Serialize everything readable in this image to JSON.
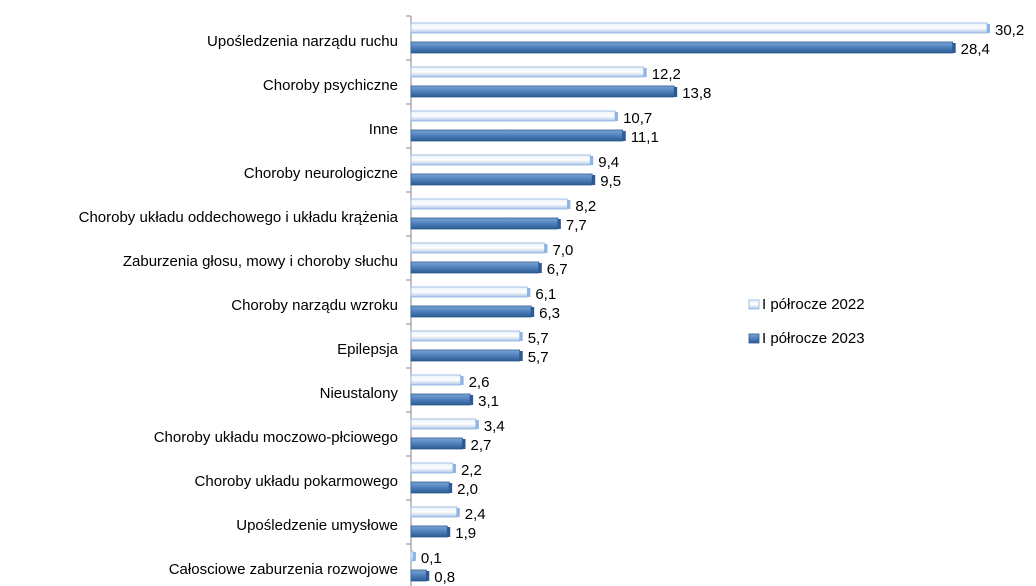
{
  "chart_data": {
    "type": "bar",
    "orientation": "horizontal",
    "categories": [
      "Upośledzenia narządu ruchu",
      "Choroby psychiczne",
      "Inne",
      "Choroby neurologiczne",
      "Choroby układu oddechowego i układu krążenia",
      "Zaburzenia głosu, mowy i choroby słuchu",
      "Choroby narządu wzroku",
      "Epilepsja",
      "Nieustalony",
      "Choroby układu moczowo-płciowego",
      "Choroby układu pokarmowego",
      "Upośledzenie umysłowe",
      "Całosciowe zaburzenia rozwojowe"
    ],
    "series": [
      {
        "name": "I półrocze 2022",
        "color": "#c6d9f1",
        "values": [
          30.2,
          12.2,
          10.7,
          9.4,
          8.2,
          7.0,
          6.1,
          5.7,
          2.6,
          3.4,
          2.2,
          2.4,
          0.1
        ],
        "value_labels": [
          "30,2",
          "12,2",
          "10,7",
          "9,4",
          "8,2",
          "7,0",
          "6,1",
          "5,7",
          "2,6",
          "3,4",
          "2,2",
          "2,4",
          "0,1"
        ]
      },
      {
        "name": "I półrocze 2023",
        "color": "#4f81bd",
        "values": [
          28.4,
          13.8,
          11.1,
          9.5,
          7.7,
          6.7,
          6.3,
          5.7,
          3.1,
          2.7,
          2.0,
          1.9,
          0.8
        ],
        "value_labels": [
          "28,4",
          "13,8",
          "11,1",
          "9,5",
          "7,7",
          "6,7",
          "6,3",
          "5,7",
          "3,1",
          "2,7",
          "2,0",
          "1,9",
          "0,8"
        ]
      }
    ],
    "legend": "right"
  }
}
